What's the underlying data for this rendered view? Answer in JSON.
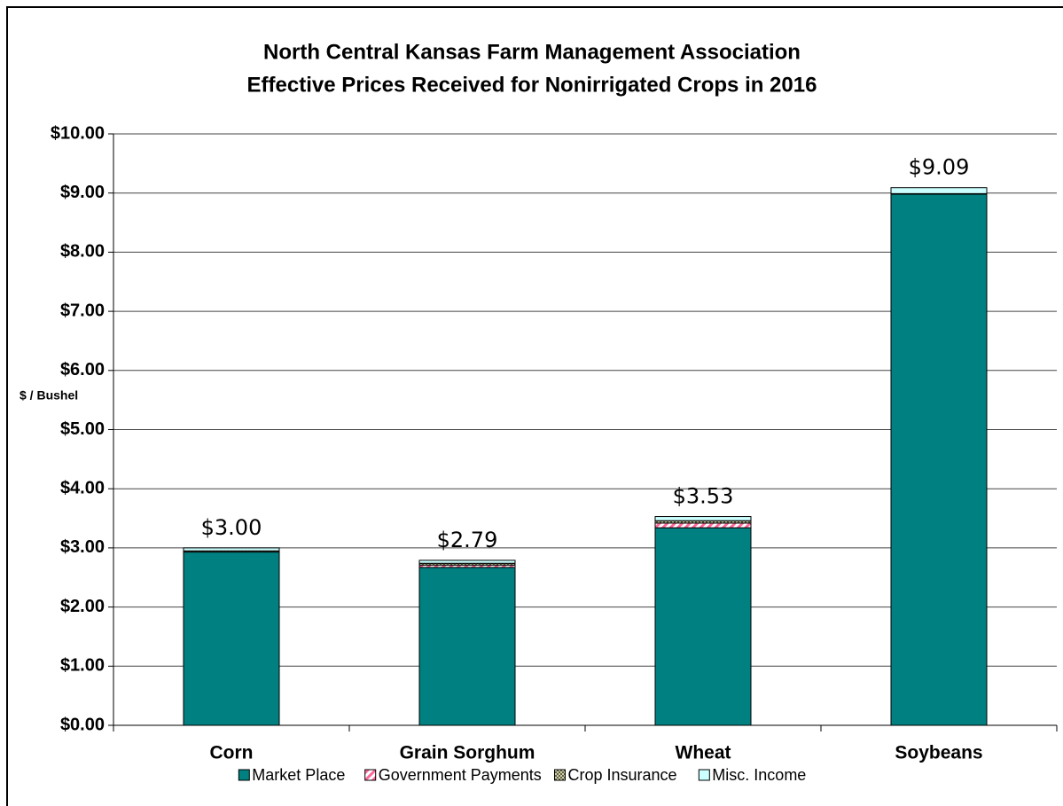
{
  "chart_data": {
    "type": "stacked_bar",
    "title": "North Central Kansas Farm Management Association",
    "subtitle": "Effective Prices Received for Nonirrigated Crops in 2016",
    "y_label": "$ / Bushel",
    "categories": [
      "Corn",
      "Grain Sorghum",
      "Wheat",
      "Soybeans"
    ],
    "series": [
      {
        "name": "Market Place",
        "color": "#008080",
        "values": [
          2.93,
          2.67,
          3.34,
          8.98
        ]
      },
      {
        "name": "Government Payments",
        "color": "#ff6699",
        "pattern": "diagonal",
        "values": [
          0.0,
          0.04,
          0.08,
          0.0
        ]
      },
      {
        "name": "Crop Insurance",
        "color": "#808060",
        "pattern": "crosshatch",
        "values": [
          0.02,
          0.03,
          0.04,
          0.01
        ]
      },
      {
        "name": "Misc. Income",
        "color": "#ccffff",
        "values": [
          0.05,
          0.05,
          0.07,
          0.1
        ]
      }
    ],
    "totals": [
      3.0,
      2.79,
      3.53,
      9.09
    ],
    "total_labels": [
      "$3.00",
      "$2.79",
      "$3.53",
      "$9.09"
    ],
    "ylim": [
      0,
      10
    ],
    "yticks": [
      {
        "value": 0,
        "label": "$0.00"
      },
      {
        "value": 1,
        "label": "$1.00"
      },
      {
        "value": 2,
        "label": "$2.00"
      },
      {
        "value": 3,
        "label": "$3.00"
      },
      {
        "value": 4,
        "label": "$4.00"
      },
      {
        "value": 5,
        "label": "$5.00"
      },
      {
        "value": 6,
        "label": "$6.00"
      },
      {
        "value": 7,
        "label": "$7.00"
      },
      {
        "value": 8,
        "label": "$8.00"
      },
      {
        "value": 9,
        "label": "$9.00"
      },
      {
        "value": 10,
        "label": "$10.00"
      }
    ],
    "grid": true,
    "legend": "bottom"
  }
}
